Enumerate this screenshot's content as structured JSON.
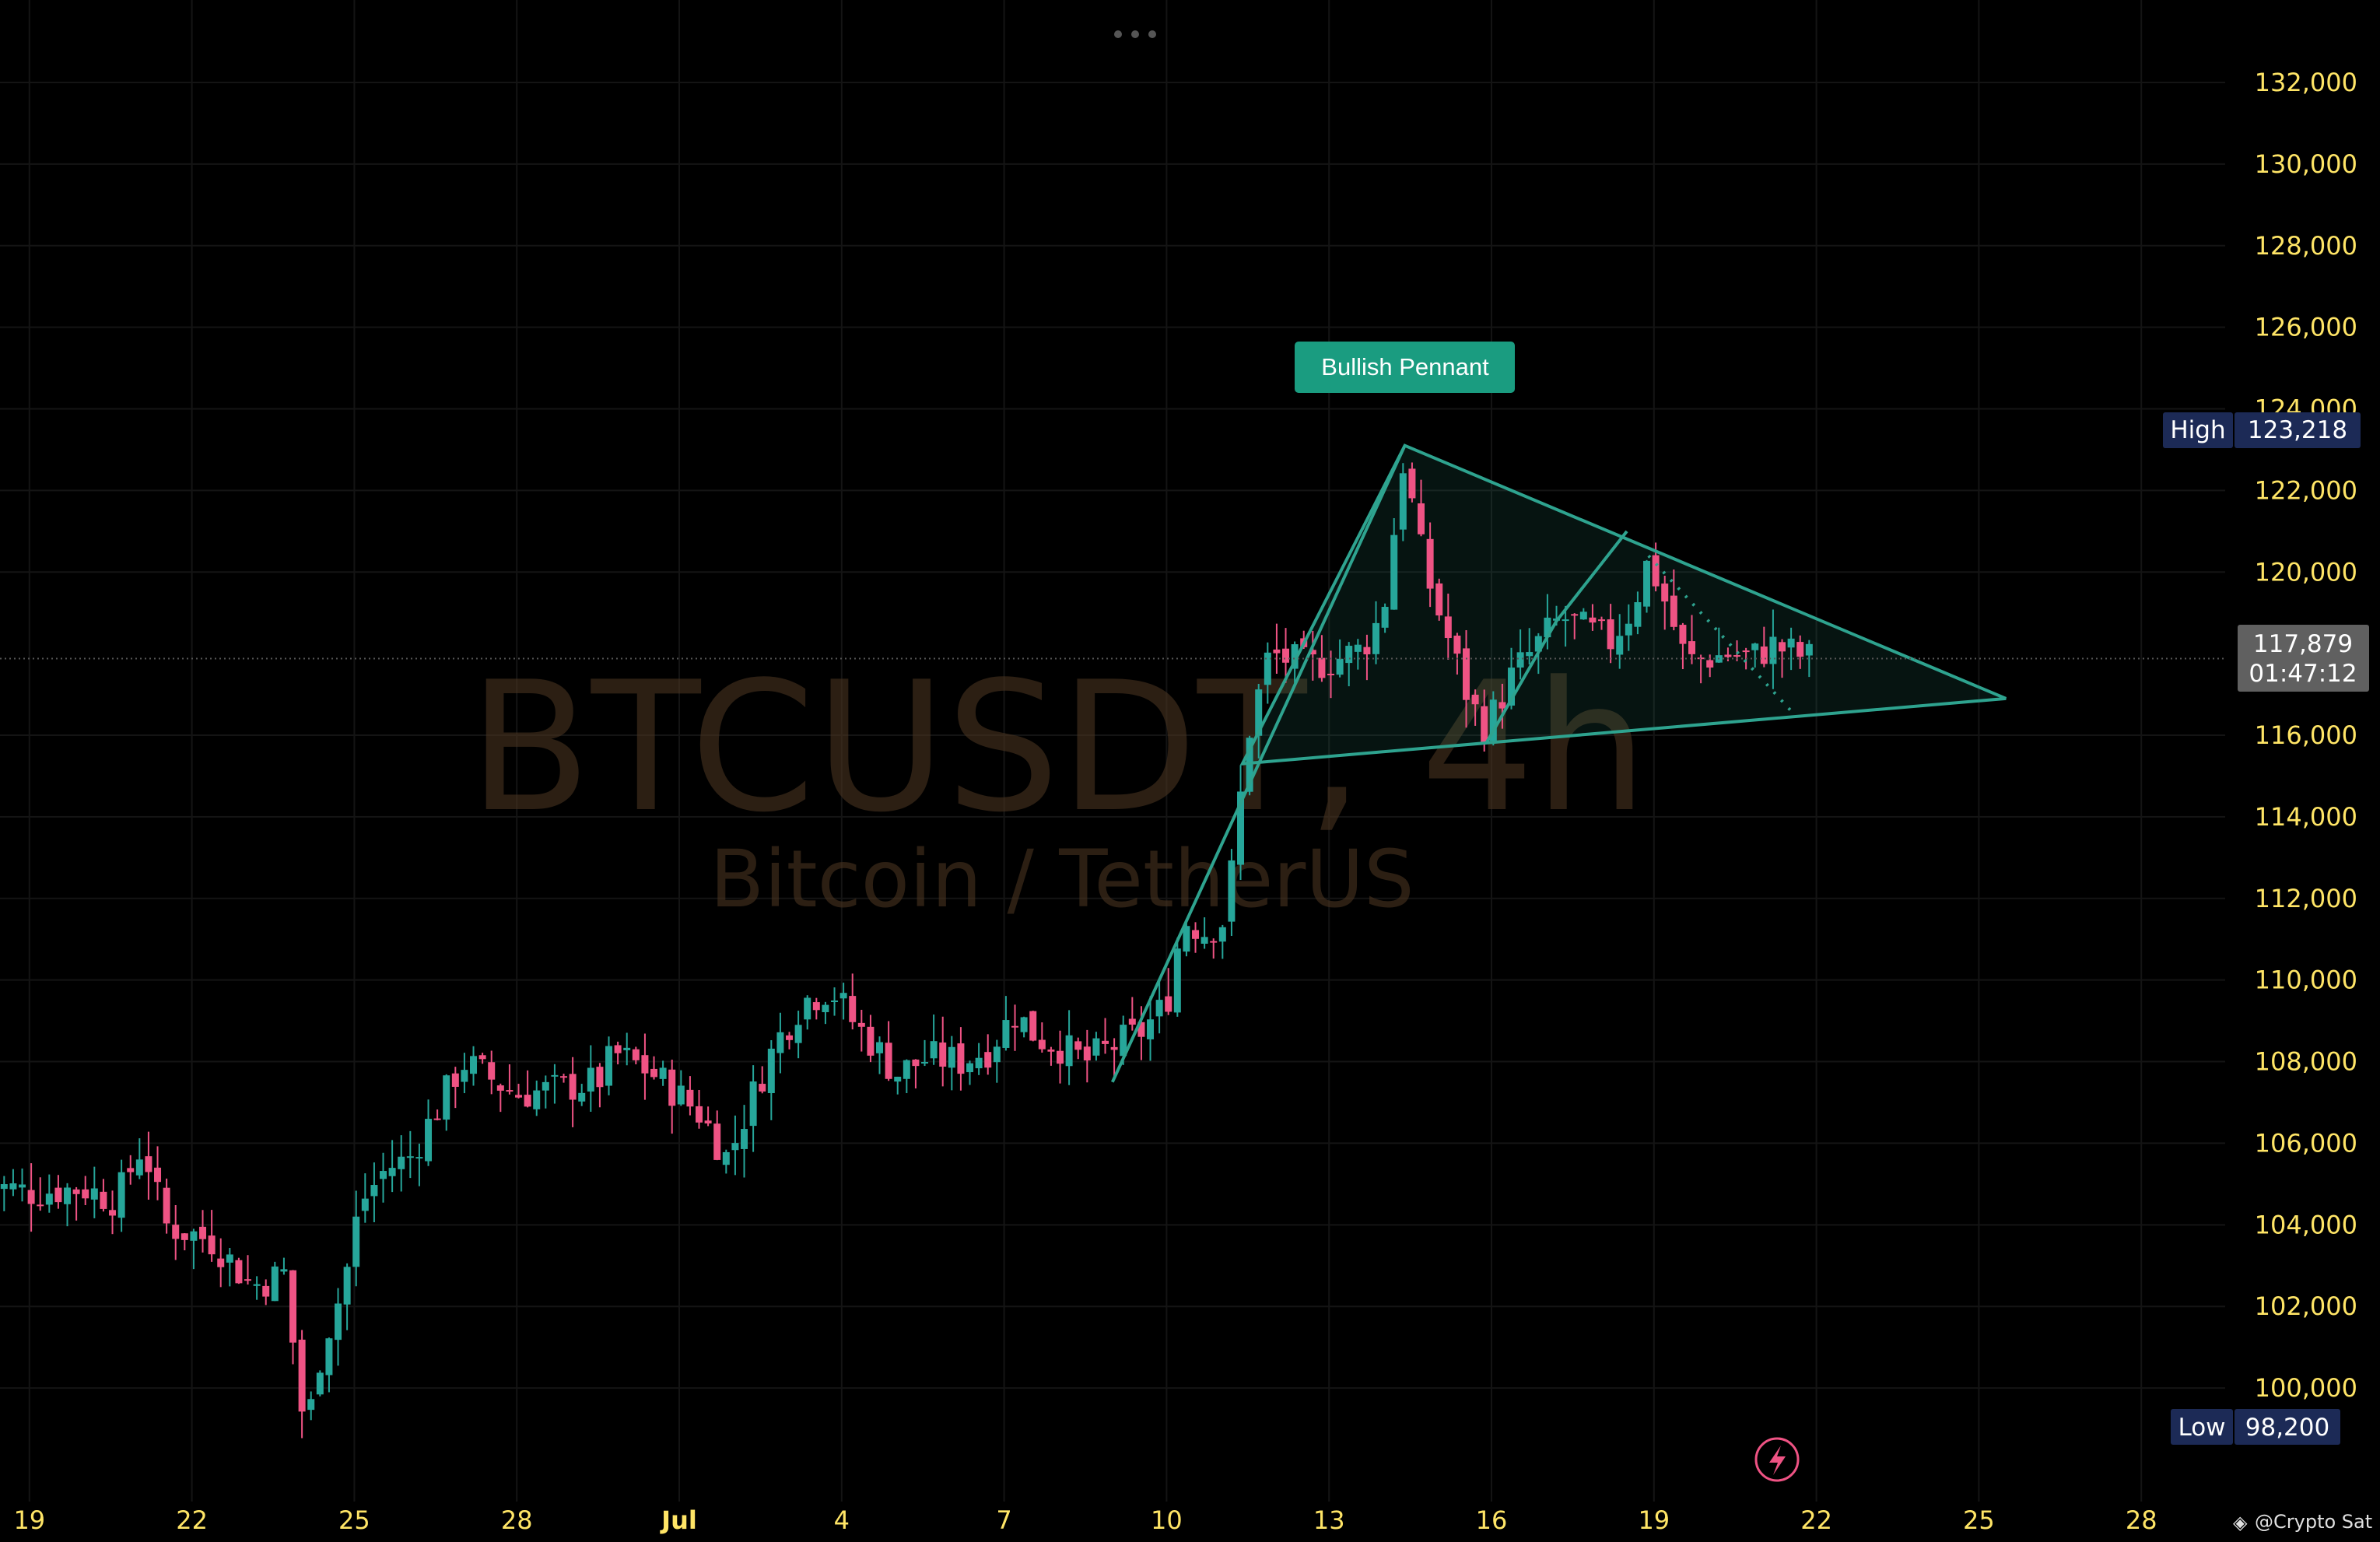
{
  "menu": {
    "icon": "more-horizontal-icon"
  },
  "watermark": {
    "symbol": "BTCUSDT, 4h",
    "name": "Bitcoin / TetherUS"
  },
  "pattern_label": "Bullish Pennant",
  "markers": {
    "high": {
      "label": "High",
      "value": "123,218"
    },
    "low": {
      "label": "Low",
      "value": "98,200"
    },
    "last": {
      "price": "117,879",
      "countdown": "01:47:12"
    }
  },
  "attribution": "@Crypto Sat",
  "alert_icon": "lightning-icon",
  "colors": {
    "up": "#26a69a",
    "down": "#ef5384",
    "axis_text": "#ffe566",
    "pattern": "#2ea38f",
    "grid": "#141414"
  },
  "chart_data": {
    "type": "candlestick",
    "xlabels": [
      "19",
      "22",
      "25",
      "28",
      "Jul",
      "4",
      "7",
      "10",
      "13",
      "16",
      "19",
      "22",
      "25",
      "28"
    ],
    "xlabel_days": [
      -12,
      -9,
      -6,
      -3,
      0,
      3,
      6,
      9,
      12,
      15,
      18,
      21,
      24,
      27
    ],
    "ylabels": [
      "132,000",
      "130,000",
      "128,000",
      "126,000",
      "124,000",
      "122,000",
      "120,000",
      "116,000",
      "114,000",
      "112,000",
      "110,000",
      "108,000",
      "106,000",
      "104,000",
      "102,000",
      "100,000"
    ],
    "yticks": [
      132000,
      130000,
      128000,
      126000,
      124000,
      122000,
      120000,
      116000,
      114000,
      112000,
      110000,
      108000,
      106000,
      104000,
      102000,
      100000
    ],
    "ylim": [
      96500,
      133800
    ],
    "high": 123218,
    "low": 98200,
    "last_price": 117879,
    "anchors": [
      [
        -12.8,
        105000
      ],
      [
        -12.0,
        104800
      ],
      [
        -11.0,
        104900
      ],
      [
        -10.4,
        104600
      ],
      [
        -9.9,
        106000
      ],
      [
        -9.5,
        104000
      ],
      [
        -8.6,
        103600
      ],
      [
        -7.9,
        102500
      ],
      [
        -7.3,
        102800
      ],
      [
        -6.9,
        98800
      ],
      [
        -6.6,
        101000
      ],
      [
        -6.2,
        102500
      ],
      [
        -5.9,
        104500
      ],
      [
        -5.4,
        105400
      ],
      [
        -5.0,
        105600
      ],
      [
        -4.4,
        107000
      ],
      [
        -4.0,
        108000
      ],
      [
        -3.5,
        107600
      ],
      [
        -3.0,
        107200
      ],
      [
        -2.4,
        107300
      ],
      [
        -1.5,
        107500
      ],
      [
        -1.2,
        108200
      ],
      [
        -0.6,
        107800
      ],
      [
        -0.2,
        107400
      ],
      [
        0.4,
        106700
      ],
      [
        0.9,
        105600
      ],
      [
        1.3,
        107000
      ],
      [
        1.8,
        108500
      ],
      [
        2.3,
        109500
      ],
      [
        2.8,
        109800
      ],
      [
        3.2,
        109000
      ],
      [
        3.6,
        108400
      ],
      [
        4.0,
        107700
      ],
      [
        4.6,
        108100
      ],
      [
        5.2,
        108000
      ],
      [
        5.7,
        108300
      ],
      [
        6.2,
        109200
      ],
      [
        6.6,
        108600
      ],
      [
        7.0,
        108400
      ],
      [
        7.5,
        108000
      ],
      [
        7.9,
        108300
      ],
      [
        8.5,
        108700
      ],
      [
        9.0,
        109400
      ],
      [
        9.3,
        111500
      ],
      [
        9.7,
        111200
      ],
      [
        10.1,
        111500
      ],
      [
        10.5,
        116000
      ],
      [
        10.9,
        118000
      ],
      [
        11.6,
        117700
      ],
      [
        12.0,
        117800
      ],
      [
        12.6,
        118100
      ],
      [
        13.0,
        119000
      ],
      [
        13.4,
        123000
      ],
      [
        13.6,
        121000
      ],
      [
        13.9,
        119500
      ],
      [
        14.3,
        118000
      ],
      [
        14.6,
        116800
      ],
      [
        14.9,
        116200
      ],
      [
        15.4,
        117500
      ],
      [
        15.9,
        118300
      ],
      [
        16.3,
        118900
      ],
      [
        16.7,
        118600
      ],
      [
        17.2,
        118300
      ],
      [
        17.6,
        119100
      ],
      [
        17.9,
        120300
      ],
      [
        18.2,
        119300
      ],
      [
        18.6,
        117800
      ],
      [
        19.0,
        117900
      ],
      [
        19.4,
        118000
      ],
      [
        19.8,
        117900
      ],
      [
        20.2,
        118200
      ],
      [
        20.6,
        118000
      ],
      [
        20.9,
        117879
      ]
    ],
    "pattern": {
      "flagpole_upper": [
        [
          8.0,
          107500
        ],
        [
          13.4,
          123100
        ]
      ],
      "triangle": [
        [
          13.4,
          123100
        ],
        [
          24.5,
          116900
        ],
        [
          10.4,
          115300
        ]
      ],
      "inner_zigzag": [
        [
          14.9,
          115800
        ],
        [
          16.2,
          118800
        ],
        [
          17.5,
          121000
        ]
      ],
      "dotted_line": [
        [
          17.9,
          120400
        ],
        [
          20.6,
          116500
        ]
      ]
    }
  }
}
